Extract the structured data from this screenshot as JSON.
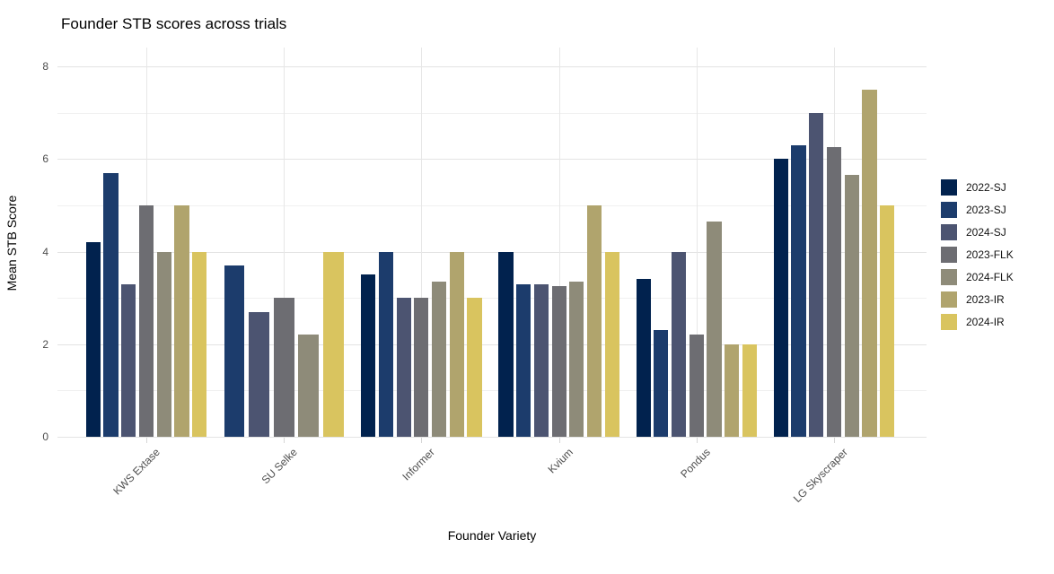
{
  "chart_data": {
    "type": "bar",
    "title": "Founder STB scores across trials",
    "xlabel": "Founder Variety",
    "ylabel": "Mean STB Score",
    "ylim": [
      0,
      8
    ],
    "yticks": [
      0,
      2,
      4,
      6,
      8
    ],
    "grid": true,
    "legend_position": "right",
    "background": "#ffffff",
    "categories": [
      "KWS Extase",
      "SU Selke",
      "Informer",
      "Kvium",
      "Pondus",
      "LG Skyscraper"
    ],
    "series": [
      {
        "name": "2022-SJ",
        "color": "#01224e",
        "values": [
          4.2,
          null,
          3.5,
          4.0,
          3.4,
          6.0
        ]
      },
      {
        "name": "2023-SJ",
        "color": "#1c3c6c",
        "values": [
          5.7,
          3.7,
          4.0,
          3.3,
          2.3,
          6.3
        ]
      },
      {
        "name": "2024-SJ",
        "color": "#4c5471",
        "values": [
          3.3,
          2.7,
          3.0,
          3.3,
          4.0,
          7.0
        ]
      },
      {
        "name": "2023-FLK",
        "color": "#6d6d72",
        "values": [
          5.0,
          3.0,
          3.0,
          3.25,
          2.2,
          6.25
        ]
      },
      {
        "name": "2024-FLK",
        "color": "#8e8b79",
        "values": [
          4.0,
          2.2,
          3.35,
          3.35,
          4.65,
          5.65
        ]
      },
      {
        "name": "2023-IR",
        "color": "#b0a46d",
        "values": [
          5.0,
          null,
          4.0,
          5.0,
          2.0,
          7.5
        ]
      },
      {
        "name": "2024-IR",
        "color": "#d9c45f",
        "values": [
          4.0,
          4.0,
          3.0,
          4.0,
          2.0,
          5.0
        ]
      }
    ]
  }
}
